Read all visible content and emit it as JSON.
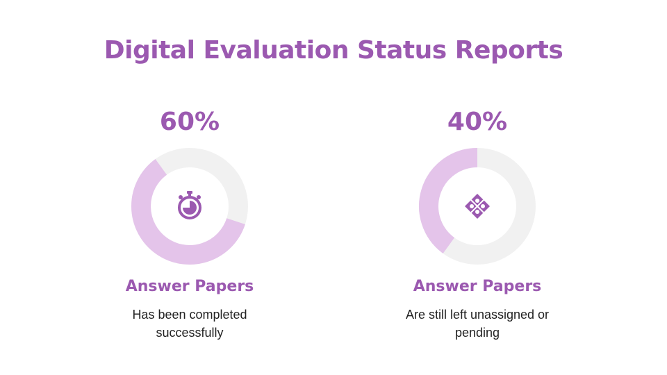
{
  "colors": {
    "accent": "#9b59b0",
    "ring_fill": "#e4c4ea",
    "ring_track": "#f1f1f1"
  },
  "title": "Digital Evaluation Status Reports",
  "cards": [
    {
      "percent_text": "60%",
      "percent_value": 60,
      "icon": "stopwatch-icon",
      "label": "Answer Papers",
      "description_line1": "Has been completed",
      "description_line2": "successfully"
    },
    {
      "percent_text": "40%",
      "percent_value": 40,
      "icon": "puzzle-icon",
      "label": "Answer Papers",
      "description_line1": "Are still left unassigned or",
      "description_line2": "pending"
    }
  ]
}
